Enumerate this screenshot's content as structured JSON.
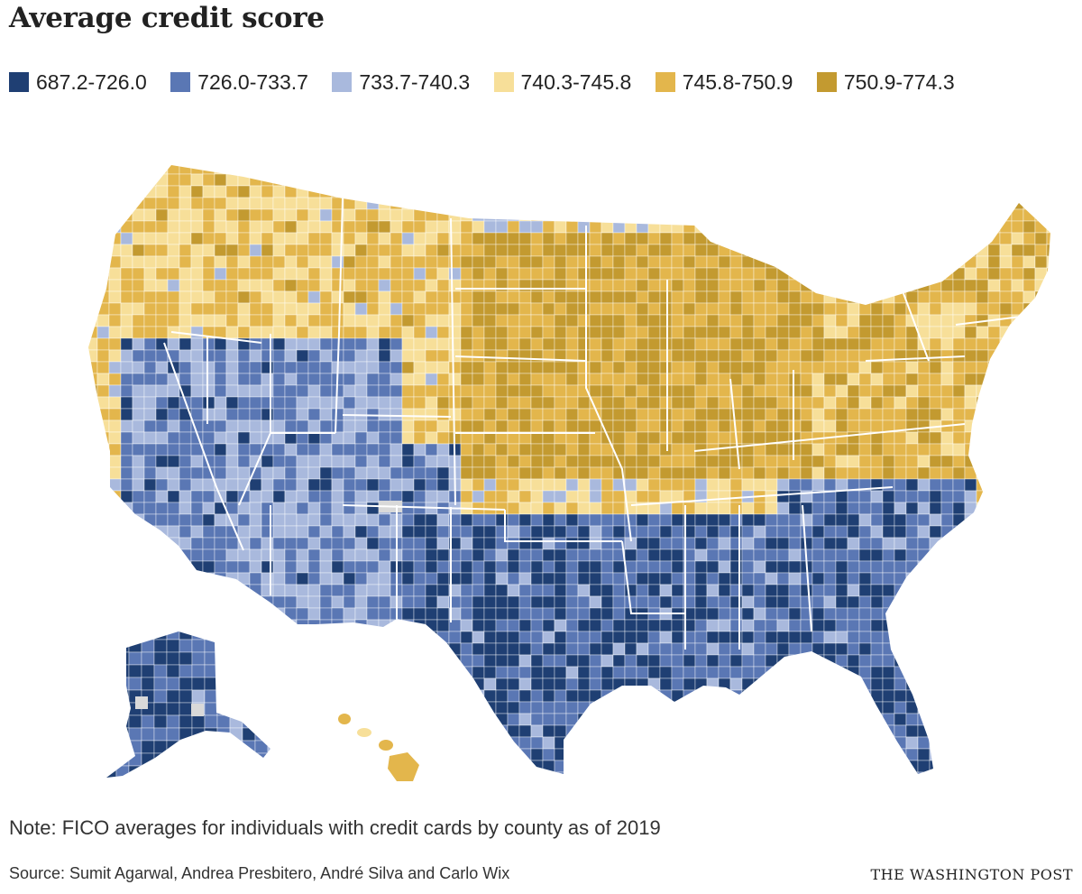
{
  "title": "Average credit score",
  "legend": [
    {
      "label": "687.2-726.0",
      "color": "#1f3f73"
    },
    {
      "label": "726.0-733.7",
      "color": "#5a77b4"
    },
    {
      "label": "733.7-740.3",
      "color": "#a9b9dd"
    },
    {
      "label": "740.3-745.8",
      "color": "#f7df99"
    },
    {
      "label": "745.8-750.9",
      "color": "#e3b64c"
    },
    {
      "label": "750.9-774.3",
      "color": "#c39a30"
    }
  ],
  "no_data_color": "#d9d9d9",
  "note": "Note: FICO averages for individuals with credit cards by county as of 2019",
  "source": "Source: Sumit Agarwal, Andrea Presbitero, André Silva and Carlo Wix",
  "credit": "THE WASHINGTON POST"
}
